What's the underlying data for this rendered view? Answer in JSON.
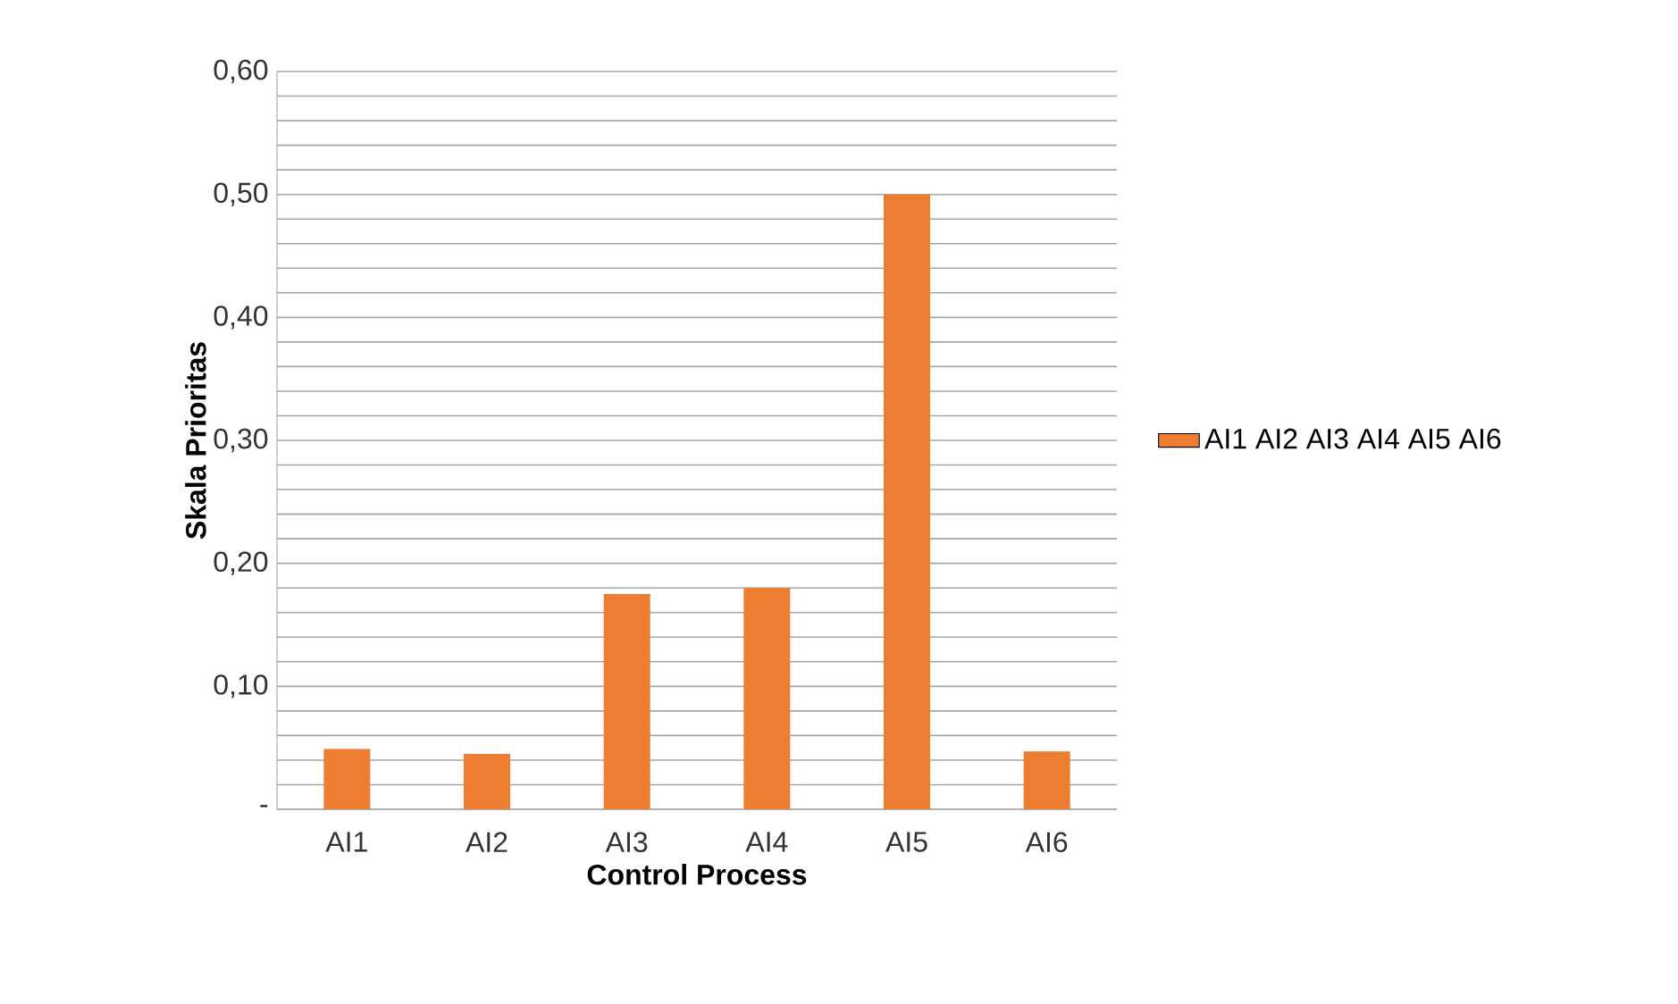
{
  "chart_data": {
    "type": "bar",
    "xlabel": "Control Process",
    "ylabel": "Skala Prioritas",
    "categories": [
      "AI1",
      "AI2",
      "AI3",
      "AI4",
      "AI5",
      "AI6"
    ],
    "series": [
      {
        "name": "AI1 AI2 AI3 AI4 AI5 AI6",
        "color": "#ed7d31",
        "values": [
          0.049,
          0.045,
          0.175,
          0.18,
          0.5,
          0.047
        ]
      }
    ],
    "ylim": [
      0,
      0.6
    ],
    "yticks": [
      {
        "value": 0,
        "label": "-"
      },
      {
        "value": 0.02,
        "label": null
      },
      {
        "value": 0.04,
        "label": null
      },
      {
        "value": 0.06,
        "label": null
      },
      {
        "value": 0.08,
        "label": null
      },
      {
        "value": 0.1,
        "label": "0,10"
      },
      {
        "value": 0.12,
        "label": null
      },
      {
        "value": 0.14,
        "label": null
      },
      {
        "value": 0.16,
        "label": null
      },
      {
        "value": 0.18,
        "label": null
      },
      {
        "value": 0.2,
        "label": "0,20"
      },
      {
        "value": 0.22,
        "label": null
      },
      {
        "value": 0.24,
        "label": null
      },
      {
        "value": 0.26,
        "label": null
      },
      {
        "value": 0.28,
        "label": null
      },
      {
        "value": 0.3,
        "label": "0,30"
      },
      {
        "value": 0.32,
        "label": null
      },
      {
        "value": 0.34,
        "label": null
      },
      {
        "value": 0.36,
        "label": null
      },
      {
        "value": 0.38,
        "label": null
      },
      {
        "value": 0.4,
        "label": "0,40"
      },
      {
        "value": 0.42,
        "label": null
      },
      {
        "value": 0.44,
        "label": null
      },
      {
        "value": 0.46,
        "label": null
      },
      {
        "value": 0.48,
        "label": null
      },
      {
        "value": 0.5,
        "label": "0,50"
      },
      {
        "value": 0.52,
        "label": null
      },
      {
        "value": 0.54,
        "label": null
      },
      {
        "value": 0.56,
        "label": null
      },
      {
        "value": 0.58,
        "label": null
      },
      {
        "value": 0.6,
        "label": "0,60"
      }
    ],
    "grid": "y",
    "legend": "right"
  }
}
